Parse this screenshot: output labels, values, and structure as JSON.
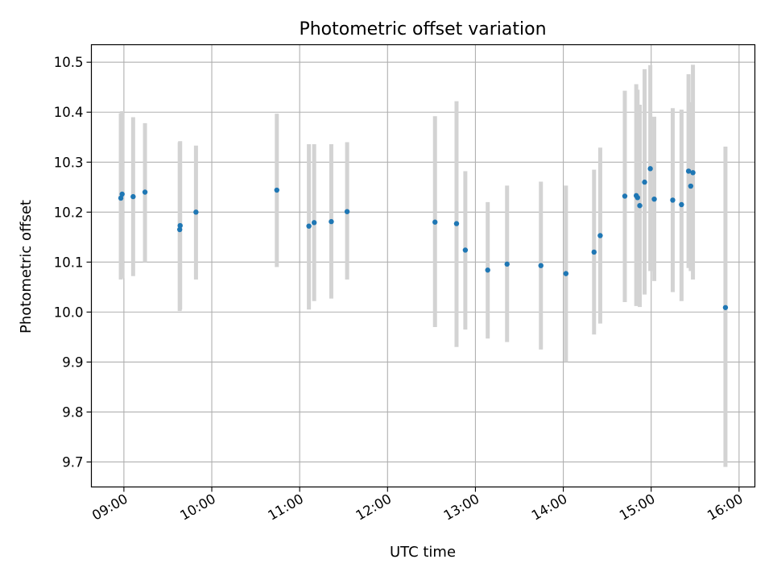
{
  "chart_data": {
    "type": "scatter",
    "title": "Photometric offset variation",
    "xlabel": "UTC time",
    "ylabel": "Photometric offset",
    "xlim": [
      8.63,
      16.18
    ],
    "ylim": [
      9.65,
      10.535
    ],
    "grid": true,
    "x_ticks": [
      {
        "value": 9,
        "label": "09:00"
      },
      {
        "value": 10,
        "label": "10:00"
      },
      {
        "value": 11,
        "label": "11:00"
      },
      {
        "value": 12,
        "label": "12:00"
      },
      {
        "value": 13,
        "label": "13:00"
      },
      {
        "value": 14,
        "label": "14:00"
      },
      {
        "value": 15,
        "label": "15:00"
      },
      {
        "value": 16,
        "label": "16:00"
      }
    ],
    "y_ticks": [
      {
        "value": 9.7,
        "label": "9.7"
      },
      {
        "value": 9.8,
        "label": "9.8"
      },
      {
        "value": 9.9,
        "label": "9.9"
      },
      {
        "value": 10.0,
        "label": "10.0"
      },
      {
        "value": 10.1,
        "label": "10.1"
      },
      {
        "value": 10.2,
        "label": "10.2"
      },
      {
        "value": 10.3,
        "label": "10.3"
      },
      {
        "value": 10.4,
        "label": "10.4"
      },
      {
        "value": 10.5,
        "label": "10.5"
      }
    ],
    "colors": {
      "points": "#1f77b4",
      "errorbars": "#d3d3d3",
      "grid": "#b0b0b0"
    },
    "series": [
      {
        "name": "Photometric offset",
        "points": [
          {
            "x": 8.965,
            "y": 10.228,
            "lo": 10.065,
            "hi": 10.398
          },
          {
            "x": 8.98,
            "y": 10.236,
            "lo": 10.068,
            "hi": 10.402
          },
          {
            "x": 9.105,
            "y": 10.231,
            "lo": 10.072,
            "hi": 10.39
          },
          {
            "x": 9.24,
            "y": 10.24,
            "lo": 10.1,
            "hi": 10.378
          },
          {
            "x": 9.635,
            "y": 10.165,
            "lo": 10.002,
            "hi": 10.34
          },
          {
            "x": 9.64,
            "y": 10.173,
            "lo": 10.005,
            "hi": 10.342
          },
          {
            "x": 9.82,
            "y": 10.2,
            "lo": 10.065,
            "hi": 10.333
          },
          {
            "x": 10.74,
            "y": 10.244,
            "lo": 10.09,
            "hi": 10.397
          },
          {
            "x": 11.105,
            "y": 10.172,
            "lo": 10.005,
            "hi": 10.336
          },
          {
            "x": 11.165,
            "y": 10.179,
            "lo": 10.022,
            "hi": 10.336
          },
          {
            "x": 11.36,
            "y": 10.181,
            "lo": 10.027,
            "hi": 10.336
          },
          {
            "x": 11.54,
            "y": 10.201,
            "lo": 10.065,
            "hi": 10.34
          },
          {
            "x": 12.54,
            "y": 10.18,
            "lo": 9.97,
            "hi": 10.392
          },
          {
            "x": 12.785,
            "y": 10.177,
            "lo": 9.93,
            "hi": 10.422
          },
          {
            "x": 12.885,
            "y": 10.124,
            "lo": 9.965,
            "hi": 10.282
          },
          {
            "x": 13.14,
            "y": 10.084,
            "lo": 9.947,
            "hi": 10.22
          },
          {
            "x": 13.36,
            "y": 10.096,
            "lo": 9.94,
            "hi": 10.253
          },
          {
            "x": 13.745,
            "y": 10.093,
            "lo": 9.925,
            "hi": 10.261
          },
          {
            "x": 14.03,
            "y": 10.077,
            "lo": 9.9,
            "hi": 10.253
          },
          {
            "x": 14.35,
            "y": 10.12,
            "lo": 9.955,
            "hi": 10.285
          },
          {
            "x": 14.42,
            "y": 10.153,
            "lo": 9.977,
            "hi": 10.329
          },
          {
            "x": 14.7,
            "y": 10.232,
            "lo": 10.02,
            "hi": 10.443
          },
          {
            "x": 14.83,
            "y": 10.233,
            "lo": 10.012,
            "hi": 10.456
          },
          {
            "x": 14.845,
            "y": 10.229,
            "lo": 10.013,
            "hi": 10.445
          },
          {
            "x": 14.87,
            "y": 10.213,
            "lo": 10.01,
            "hi": 10.415
          },
          {
            "x": 14.925,
            "y": 10.26,
            "lo": 10.035,
            "hi": 10.486
          },
          {
            "x": 14.99,
            "y": 10.287,
            "lo": 10.082,
            "hi": 10.494
          },
          {
            "x": 15.035,
            "y": 10.226,
            "lo": 10.062,
            "hi": 10.391
          },
          {
            "x": 15.245,
            "y": 10.224,
            "lo": 10.04,
            "hi": 10.408
          },
          {
            "x": 15.345,
            "y": 10.215,
            "lo": 10.022,
            "hi": 10.405
          },
          {
            "x": 15.425,
            "y": 10.282,
            "lo": 10.088,
            "hi": 10.476
          },
          {
            "x": 15.45,
            "y": 10.252,
            "lo": 10.082,
            "hi": 10.42
          },
          {
            "x": 15.475,
            "y": 10.279,
            "lo": 10.065,
            "hi": 10.495
          },
          {
            "x": 15.845,
            "y": 10.009,
            "lo": 9.69,
            "hi": 10.331
          }
        ]
      }
    ]
  }
}
